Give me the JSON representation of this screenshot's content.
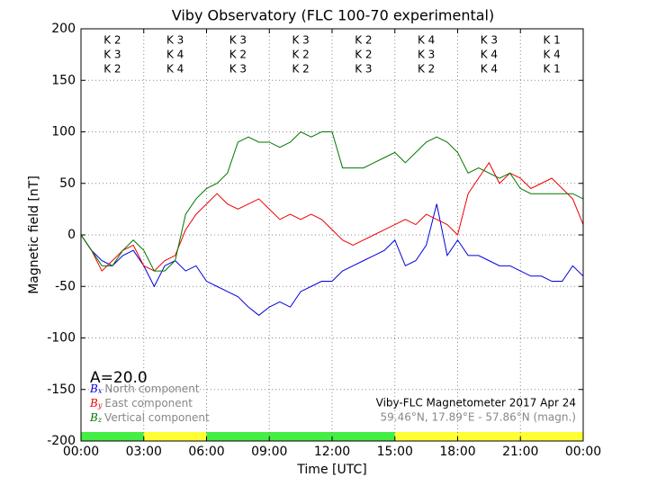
{
  "chart_data": {
    "type": "line",
    "title": "Viby Observatory (FLC 100-70 experimental)",
    "xlabel": "Time [UTC]",
    "ylabel": "Magnetic field [nT]",
    "annotation": "A=20.0",
    "station": "Viby-FLC Magnetometer 2017 Apr 24",
    "coordinates": "59.46°N, 17.89°E - 57.86°N (magn.)",
    "x": [
      0,
      0.5,
      1,
      1.5,
      2,
      2.5,
      3,
      3.5,
      4,
      4.5,
      5,
      5.5,
      6,
      6.5,
      7,
      7.5,
      8,
      8.5,
      9,
      9.5,
      10,
      10.5,
      11,
      11.5,
      12,
      12.5,
      13,
      13.5,
      14,
      14.5,
      15,
      15.5,
      16,
      16.5,
      17,
      17.5,
      18,
      18.5,
      19,
      19.5,
      20,
      20.5,
      21,
      21.5,
      22,
      22.5,
      23,
      23.5,
      24
    ],
    "xlim": [
      0,
      24
    ],
    "xticks": [
      {
        "value": 0,
        "label": "00:00"
      },
      {
        "value": 3,
        "label": "03:00"
      },
      {
        "value": 6,
        "label": "06:00"
      },
      {
        "value": 9,
        "label": "09:00"
      },
      {
        "value": 12,
        "label": "12:00"
      },
      {
        "value": 15,
        "label": "15:00"
      },
      {
        "value": 18,
        "label": "18:00"
      },
      {
        "value": 21,
        "label": "21:00"
      },
      {
        "value": 24,
        "label": "00:00"
      }
    ],
    "ylim": [
      -200,
      200
    ],
    "yticks": [
      -200,
      -150,
      -100,
      -50,
      0,
      50,
      100,
      150,
      200
    ],
    "grid": true,
    "series": [
      {
        "symbol": "B",
        "subscript": "x",
        "name": "North component",
        "color": "#0000dd",
        "k_labels": [
          "K 2",
          "K 3",
          "K 3",
          "K 3",
          "K 2",
          "K 4",
          "K 3",
          "K 1"
        ],
        "values": [
          0,
          -15,
          -25,
          -30,
          -20,
          -15,
          -30,
          -50,
          -30,
          -25,
          -35,
          -30,
          -45,
          -50,
          -55,
          -60,
          -70,
          -78,
          -70,
          -65,
          -70,
          -55,
          -50,
          -45,
          -45,
          -35,
          -30,
          -25,
          -20,
          -15,
          -5,
          -30,
          -25,
          -10,
          30,
          -20,
          -5,
          -20,
          -20,
          -25,
          -30,
          -30,
          -35,
          -40,
          -40,
          -45,
          -45,
          -30,
          -40
        ]
      },
      {
        "symbol": "B",
        "subscript": "y",
        "name": "East component",
        "color": "#ee0000",
        "k_labels": [
          "K 3",
          "K 4",
          "K 2",
          "K 2",
          "K 2",
          "K 3",
          "K 4",
          "K 4"
        ],
        "values": [
          0,
          -15,
          -35,
          -25,
          -15,
          -10,
          -30,
          -35,
          -25,
          -20,
          5,
          20,
          30,
          40,
          30,
          25,
          30,
          35,
          25,
          15,
          20,
          15,
          20,
          15,
          5,
          -5,
          -10,
          -5,
          0,
          5,
          10,
          15,
          10,
          20,
          15,
          10,
          0,
          40,
          55,
          70,
          50,
          60,
          55,
          45,
          50,
          55,
          45,
          35,
          10
        ]
      },
      {
        "symbol": "B",
        "subscript": "z",
        "name": "Vertical component",
        "color": "#007700",
        "k_labels": [
          "K 2",
          "K 4",
          "K 3",
          "K 2",
          "K 3",
          "K 2",
          "K 4",
          "K 1"
        ],
        "values": [
          0,
          -15,
          -30,
          -30,
          -15,
          -5,
          -15,
          -35,
          -35,
          -25,
          20,
          35,
          45,
          50,
          60,
          90,
          95,
          90,
          90,
          85,
          90,
          100,
          95,
          100,
          100,
          65,
          65,
          65,
          70,
          75,
          80,
          70,
          80,
          90,
          95,
          90,
          80,
          60,
          65,
          60,
          55,
          60,
          45,
          40,
          40,
          40,
          40,
          40,
          35
        ]
      }
    ],
    "status_bar": [
      {
        "start": 0,
        "end": 3,
        "color": "#44ee44"
      },
      {
        "start": 3,
        "end": 6,
        "color": "#ffff33"
      },
      {
        "start": 6,
        "end": 15,
        "color": "#44ee44"
      },
      {
        "start": 15,
        "end": 24,
        "color": "#ffff33"
      }
    ]
  }
}
